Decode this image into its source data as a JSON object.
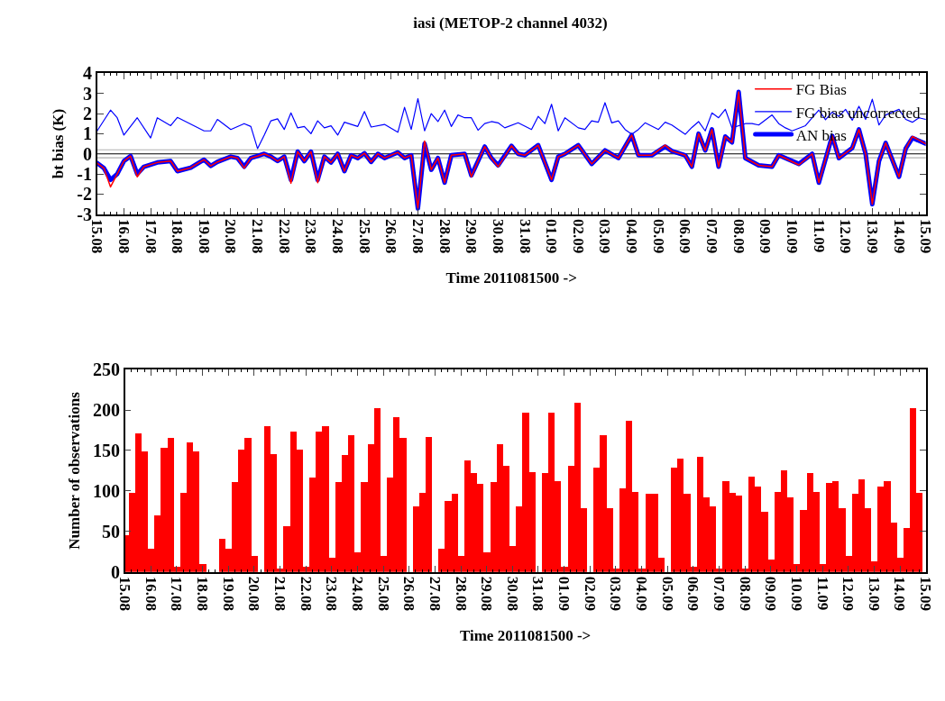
{
  "chart_data": [
    {
      "type": "line",
      "title": "iasi (METOP-2 channel 4032)",
      "xlabel": "Time 2011081500 ->",
      "ylabel": "bt bias (K)",
      "xlim": [
        "2011-08-15T00:00",
        "2011-09-15T00:00"
      ],
      "ylim": [
        -3,
        4
      ],
      "yticks": [
        -3,
        -2,
        -1,
        0,
        1,
        2,
        3,
        4
      ],
      "xticks": [
        {
          "value": "2011-08-15",
          "label": "15.08"
        },
        {
          "value": "2011-08-16",
          "label": "16.08"
        },
        {
          "value": "2011-08-17",
          "label": "17.08"
        },
        {
          "value": "2011-08-18",
          "label": "18.08"
        },
        {
          "value": "2011-08-19",
          "label": "19.08"
        },
        {
          "value": "2011-08-20",
          "label": "20.08"
        },
        {
          "value": "2011-08-21",
          "label": "21.08"
        },
        {
          "value": "2011-08-22",
          "label": "22.08"
        },
        {
          "value": "2011-08-23",
          "label": "23.08"
        },
        {
          "value": "2011-08-24",
          "label": "24.08"
        },
        {
          "value": "2011-08-25",
          "label": "25.08"
        },
        {
          "value": "2011-08-26",
          "label": "26.08"
        },
        {
          "value": "2011-08-27",
          "label": "27.08"
        },
        {
          "value": "2011-08-28",
          "label": "28.08"
        },
        {
          "value": "2011-08-29",
          "label": "29.08"
        },
        {
          "value": "2011-08-30",
          "label": "30.08"
        },
        {
          "value": "2011-08-31",
          "label": "31.08"
        },
        {
          "value": "2011-09-01",
          "label": "01.09"
        },
        {
          "value": "2011-09-02",
          "label": "02.09"
        },
        {
          "value": "2011-09-03",
          "label": "03.09"
        },
        {
          "value": "2011-09-04",
          "label": "04.09"
        },
        {
          "value": "2011-09-05",
          "label": "05.09"
        },
        {
          "value": "2011-09-06",
          "label": "06.09"
        },
        {
          "value": "2011-09-07",
          "label": "07.09"
        },
        {
          "value": "2011-09-08",
          "label": "08.09"
        },
        {
          "value": "2011-09-09",
          "label": "09.09"
        },
        {
          "value": "2011-09-10",
          "label": "10.09"
        },
        {
          "value": "2011-09-11",
          "label": "11.09"
        },
        {
          "value": "2011-09-12",
          "label": "12.09"
        },
        {
          "value": "2011-09-13",
          "label": "13.09"
        },
        {
          "value": "2011-09-14",
          "label": "14.09"
        },
        {
          "value": "2011-09-15",
          "label": "15.09"
        }
      ],
      "legend": "top right",
      "ref_lines": [
        {
          "axis": "y",
          "value": 0.2,
          "color": "#b0b0b0"
        },
        {
          "axis": "y",
          "value": -0.2,
          "color": "#b0b0b0"
        },
        {
          "axis": "y",
          "value": 0,
          "color": "#000000"
        }
      ],
      "series": [
        {
          "name": "FG Bias",
          "color": "#ff0000",
          "x": [
            "2011-08-15T00:00",
            "2011-08-15T06:00",
            "2011-08-15T12:00",
            "2011-08-15T18:00",
            "2011-08-16T00:00",
            "2011-08-16T06:00",
            "2011-08-16T12:00",
            "2011-08-16T18:00",
            "2011-08-17T06:00",
            "2011-08-17T18:00",
            "2011-08-18T00:00",
            "2011-08-18T12:00",
            "2011-08-19T00:00",
            "2011-08-19T06:00",
            "2011-08-19T12:00",
            "2011-08-20T00:00",
            "2011-08-20T06:00",
            "2011-08-20T12:00",
            "2011-08-20T18:00",
            "2011-08-21T00:00",
            "2011-08-21T06:00",
            "2011-08-21T12:00",
            "2011-08-21T18:00",
            "2011-08-22T00:00",
            "2011-08-22T06:00",
            "2011-08-22T12:00",
            "2011-08-22T18:00",
            "2011-08-23T00:00",
            "2011-08-23T06:00",
            "2011-08-23T12:00",
            "2011-08-23T18:00",
            "2011-08-24T00:00",
            "2011-08-24T06:00",
            "2011-08-24T12:00",
            "2011-08-24T18:00",
            "2011-08-25T00:00",
            "2011-08-25T06:00",
            "2011-08-25T12:00",
            "2011-08-25T18:00",
            "2011-08-26T00:00",
            "2011-08-26T06:00",
            "2011-08-26T12:00",
            "2011-08-26T18:00",
            "2011-08-27T00:00",
            "2011-08-27T06:00",
            "2011-08-27T12:00",
            "2011-08-27T18:00",
            "2011-08-28T00:00",
            "2011-08-28T06:00",
            "2011-08-28T12:00",
            "2011-08-28T18:00",
            "2011-08-29T00:00",
            "2011-08-29T06:00",
            "2011-08-29T12:00",
            "2011-08-29T18:00",
            "2011-08-30T00:00",
            "2011-08-30T12:00",
            "2011-08-30T18:00",
            "2011-08-31T00:00",
            "2011-08-31T12:00",
            "2011-09-01T00:00",
            "2011-09-01T06:00",
            "2011-09-01T12:00",
            "2011-09-02T00:00",
            "2011-09-02T12:00",
            "2011-09-03T00:00",
            "2011-09-03T12:00",
            "2011-09-04T00:00",
            "2011-09-04T06:00",
            "2011-09-04T18:00",
            "2011-09-05T06:00",
            "2011-09-05T12:00",
            "2011-09-06T00:00",
            "2011-09-06T06:00",
            "2011-09-06T12:00",
            "2011-09-06T18:00",
            "2011-09-07T00:00",
            "2011-09-07T06:00",
            "2011-09-07T12:00",
            "2011-09-07T18:00",
            "2011-09-08T00:00",
            "2011-09-08T06:00",
            "2011-09-08T18:00",
            "2011-09-09T06:00",
            "2011-09-09T12:00",
            "2011-09-10T06:00",
            "2011-09-10T18:00",
            "2011-09-11T00:00",
            "2011-09-11T12:00",
            "2011-09-11T18:00",
            "2011-09-12T06:00",
            "2011-09-12T12:00",
            "2011-09-12T18:00",
            "2011-09-13T00:00",
            "2011-09-13T06:00",
            "2011-09-13T12:00",
            "2011-09-14T00:00",
            "2011-09-14T06:00",
            "2011-09-14T12:00",
            "2011-09-15T00:00"
          ],
          "values": [
            -0.46,
            -0.71,
            -1.64,
            -1.0,
            -0.36,
            -0.11,
            -1.14,
            -0.64,
            -0.43,
            -0.36,
            -0.86,
            -0.69,
            -0.29,
            -0.6,
            -0.4,
            -0.14,
            -0.21,
            -0.71,
            -0.21,
            -0.11,
            0.0,
            -0.14,
            -0.36,
            -0.14,
            -1.46,
            0.11,
            -0.36,
            0.11,
            -1.43,
            -0.14,
            -0.43,
            0.0,
            -0.86,
            -0.07,
            -0.21,
            0.03,
            -0.4,
            0.0,
            -0.21,
            -0.07,
            0.07,
            -0.21,
            -0.07,
            -2.71,
            0.64,
            -0.79,
            -0.21,
            -1.43,
            -0.07,
            -0.03,
            0.0,
            -1.14,
            -0.36,
            0.36,
            -0.21,
            -0.64,
            0.4,
            0.0,
            -0.07,
            0.43,
            -1.29,
            -0.14,
            0.0,
            0.43,
            -0.5,
            0.17,
            -0.21,
            0.93,
            -0.07,
            -0.07,
            0.43,
            0.14,
            -0.07,
            -0.64,
            1.0,
            0.17,
            1.21,
            -0.64,
            0.86,
            0.57,
            3.07,
            -0.21,
            -0.57,
            -0.64,
            -0.07,
            -0.55,
            0.0,
            -1.43,
            0.89,
            -0.21,
            0.29,
            1.21,
            0.0,
            -2.5,
            -0.36,
            0.54,
            -1.14,
            0.26,
            0.86,
            0.5
          ]
        },
        {
          "name": "FG bias uncorrected",
          "color": "#0000ff",
          "x": [
            "2011-08-15T00:00",
            "2011-08-15T12:00",
            "2011-08-15T18:00",
            "2011-08-16T00:00",
            "2011-08-16T12:00",
            "2011-08-17T00:00",
            "2011-08-17T06:00",
            "2011-08-17T18:00",
            "2011-08-18T00:00",
            "2011-08-19T00:00",
            "2011-08-19T06:00",
            "2011-08-19T12:00",
            "2011-08-20T00:00",
            "2011-08-20T12:00",
            "2011-08-20T18:00",
            "2011-08-21T00:00",
            "2011-08-21T06:00",
            "2011-08-21T12:00",
            "2011-08-21T18:00",
            "2011-08-22T00:00",
            "2011-08-22T06:00",
            "2011-08-22T12:00",
            "2011-08-22T18:00",
            "2011-08-23T00:00",
            "2011-08-23T06:00",
            "2011-08-23T12:00",
            "2011-08-23T18:00",
            "2011-08-24T00:00",
            "2011-08-24T06:00",
            "2011-08-24T18:00",
            "2011-08-25T00:00",
            "2011-08-25T06:00",
            "2011-08-25T18:00",
            "2011-08-26T06:00",
            "2011-08-26T12:00",
            "2011-08-26T18:00",
            "2011-08-27T00:00",
            "2011-08-27T06:00",
            "2011-08-27T12:00",
            "2011-08-27T18:00",
            "2011-08-28T00:00",
            "2011-08-28T06:00",
            "2011-08-28T12:00",
            "2011-08-28T18:00",
            "2011-08-29T00:00",
            "2011-08-29T06:00",
            "2011-08-29T12:00",
            "2011-08-29T18:00",
            "2011-08-30T00:00",
            "2011-08-30T06:00",
            "2011-08-30T18:00",
            "2011-08-31T06:00",
            "2011-08-31T12:00",
            "2011-08-31T18:00",
            "2011-09-01T00:00",
            "2011-09-01T06:00",
            "2011-09-01T12:00",
            "2011-09-02T00:00",
            "2011-09-02T06:00",
            "2011-09-02T12:00",
            "2011-09-02T18:00",
            "2011-09-03T00:00",
            "2011-09-03T06:00",
            "2011-09-03T12:00",
            "2011-09-03T18:00",
            "2011-09-04T00:00",
            "2011-09-04T06:00",
            "2011-09-04T12:00",
            "2011-09-05T00:00",
            "2011-09-05T06:00",
            "2011-09-05T12:00",
            "2011-09-06T00:00",
            "2011-09-06T06:00",
            "2011-09-06T12:00",
            "2011-09-06T18:00",
            "2011-09-07T00:00",
            "2011-09-07T06:00",
            "2011-09-07T12:00",
            "2011-09-07T18:00",
            "2011-09-08T06:00",
            "2011-09-08T12:00",
            "2011-09-08T18:00",
            "2011-09-09T06:00",
            "2011-09-09T12:00",
            "2011-09-09T18:00",
            "2011-09-10T00:00",
            "2011-09-10T12:00",
            "2011-09-11T00:00",
            "2011-09-11T06:00",
            "2011-09-11T12:00",
            "2011-09-11T18:00",
            "2011-09-12T00:00",
            "2011-09-12T06:00",
            "2011-09-12T12:00",
            "2011-09-12T18:00",
            "2011-09-13T00:00",
            "2011-09-13T06:00",
            "2011-09-13T12:00",
            "2011-09-14T00:00",
            "2011-09-14T06:00",
            "2011-09-14T12:00",
            "2011-09-14T18:00",
            "2011-09-15T00:00"
          ],
          "values": [
            1.14,
            2.17,
            1.79,
            0.93,
            1.79,
            0.79,
            1.79,
            1.4,
            1.81,
            1.14,
            1.14,
            1.71,
            1.21,
            1.5,
            1.36,
            0.26,
            0.93,
            1.64,
            1.74,
            1.21,
            2.03,
            1.29,
            1.36,
            1.0,
            1.64,
            1.29,
            1.39,
            0.93,
            1.57,
            1.36,
            2.1,
            1.33,
            1.46,
            1.07,
            2.31,
            1.21,
            2.74,
            1.14,
            2.0,
            1.6,
            2.17,
            1.36,
            1.93,
            1.79,
            1.79,
            1.17,
            1.5,
            1.6,
            1.54,
            1.29,
            1.54,
            1.21,
            1.86,
            1.5,
            2.46,
            1.14,
            1.79,
            1.29,
            1.21,
            1.64,
            1.57,
            2.54,
            1.54,
            1.64,
            1.21,
            0.97,
            1.21,
            1.54,
            1.21,
            1.57,
            1.43,
            0.97,
            1.31,
            1.6,
            1.14,
            2.03,
            1.79,
            2.21,
            1.29,
            1.5,
            1.5,
            1.43,
            1.93,
            1.5,
            1.29,
            1.14,
            1.4,
            2.17,
            1.69,
            2.07,
            1.86,
            2.21,
            1.67,
            2.36,
            1.71,
            2.71,
            1.43,
            1.93,
            2.21,
            1.71,
            1.57,
            1.79,
            1.71
          ]
        },
        {
          "name": "AN bias",
          "color": "#0000ff",
          "x": [
            "2011-08-15T00:00",
            "2011-08-15T06:00",
            "2011-08-15T12:00",
            "2011-08-15T18:00",
            "2011-08-16T00:00",
            "2011-08-16T06:00",
            "2011-08-16T12:00",
            "2011-08-16T18:00",
            "2011-08-17T06:00",
            "2011-08-17T18:00",
            "2011-08-18T00:00",
            "2011-08-18T12:00",
            "2011-08-19T00:00",
            "2011-08-19T06:00",
            "2011-08-19T12:00",
            "2011-08-20T00:00",
            "2011-08-20T06:00",
            "2011-08-20T12:00",
            "2011-08-20T18:00",
            "2011-08-21T00:00",
            "2011-08-21T06:00",
            "2011-08-21T12:00",
            "2011-08-21T18:00",
            "2011-08-22T00:00",
            "2011-08-22T06:00",
            "2011-08-22T12:00",
            "2011-08-22T18:00",
            "2011-08-23T00:00",
            "2011-08-23T06:00",
            "2011-08-23T12:00",
            "2011-08-23T18:00",
            "2011-08-24T00:00",
            "2011-08-24T06:00",
            "2011-08-24T12:00",
            "2011-08-24T18:00",
            "2011-08-25T00:00",
            "2011-08-25T06:00",
            "2011-08-25T12:00",
            "2011-08-25T18:00",
            "2011-08-26T00:00",
            "2011-08-26T06:00",
            "2011-08-26T12:00",
            "2011-08-26T18:00",
            "2011-08-27T00:00",
            "2011-08-27T06:00",
            "2011-08-27T12:00",
            "2011-08-27T18:00",
            "2011-08-28T00:00",
            "2011-08-28T06:00",
            "2011-08-28T12:00",
            "2011-08-28T18:00",
            "2011-08-29T00:00",
            "2011-08-29T06:00",
            "2011-08-29T12:00",
            "2011-08-29T18:00",
            "2011-08-30T00:00",
            "2011-08-30T12:00",
            "2011-08-30T18:00",
            "2011-08-31T00:00",
            "2011-08-31T12:00",
            "2011-09-01T00:00",
            "2011-09-01T06:00",
            "2011-09-01T12:00",
            "2011-09-02T00:00",
            "2011-09-02T12:00",
            "2011-09-03T00:00",
            "2011-09-03T12:00",
            "2011-09-04T00:00",
            "2011-09-04T06:00",
            "2011-09-04T18:00",
            "2011-09-05T06:00",
            "2011-09-05T12:00",
            "2011-09-06T00:00",
            "2011-09-06T06:00",
            "2011-09-06T12:00",
            "2011-09-06T18:00",
            "2011-09-07T00:00",
            "2011-09-07T06:00",
            "2011-09-07T12:00",
            "2011-09-07T18:00",
            "2011-09-08T00:00",
            "2011-09-08T06:00",
            "2011-09-08T18:00",
            "2011-09-09T06:00",
            "2011-09-09T12:00",
            "2011-09-10T06:00",
            "2011-09-10T18:00",
            "2011-09-11T00:00",
            "2011-09-11T12:00",
            "2011-09-11T18:00",
            "2011-09-12T06:00",
            "2011-09-12T12:00",
            "2011-09-12T18:00",
            "2011-09-13T00:00",
            "2011-09-13T06:00",
            "2011-09-13T12:00",
            "2011-09-14T00:00",
            "2011-09-14T06:00",
            "2011-09-14T12:00",
            "2011-09-15T00:00"
          ],
          "values": [
            -0.46,
            -0.71,
            -1.29,
            -1.0,
            -0.36,
            -0.11,
            -1.0,
            -0.64,
            -0.43,
            -0.36,
            -0.86,
            -0.69,
            -0.29,
            -0.6,
            -0.4,
            -0.14,
            -0.21,
            -0.64,
            -0.21,
            -0.11,
            0.0,
            -0.14,
            -0.36,
            -0.14,
            -1.29,
            0.11,
            -0.36,
            0.11,
            -1.29,
            -0.14,
            -0.43,
            0.0,
            -0.86,
            -0.07,
            -0.21,
            0.03,
            -0.4,
            0.0,
            -0.21,
            -0.07,
            0.07,
            -0.21,
            -0.07,
            -2.71,
            0.5,
            -0.79,
            -0.21,
            -1.43,
            -0.07,
            -0.03,
            0.0,
            -1.07,
            -0.36,
            0.36,
            -0.21,
            -0.57,
            0.4,
            0.0,
            -0.07,
            0.43,
            -1.29,
            -0.14,
            0.0,
            0.43,
            -0.5,
            0.17,
            -0.21,
            0.93,
            -0.07,
            -0.07,
            0.36,
            0.14,
            -0.07,
            -0.64,
            1.0,
            0.17,
            1.21,
            -0.64,
            0.86,
            0.57,
            3.07,
            -0.21,
            -0.57,
            -0.64,
            -0.07,
            -0.5,
            0.0,
            -1.43,
            0.89,
            -0.21,
            0.29,
            1.21,
            0.0,
            -2.5,
            -0.36,
            0.54,
            -1.14,
            0.26,
            0.79,
            0.5
          ]
        }
      ]
    },
    {
      "type": "bar",
      "xlabel": "Time 2011081500 ->",
      "ylabel": "Number of observations",
      "color": "#ff0000",
      "xlim": [
        "2011-08-15T00:00",
        "2011-09-15T00:00"
      ],
      "ylim": [
        0,
        250
      ],
      "yticks": [
        0,
        50,
        100,
        150,
        200,
        250
      ],
      "xticks": [
        {
          "value": "2011-08-15",
          "label": "15.08"
        },
        {
          "value": "2011-08-16",
          "label": "16.08"
        },
        {
          "value": "2011-08-17",
          "label": "17.08"
        },
        {
          "value": "2011-08-18",
          "label": "18.08"
        },
        {
          "value": "2011-08-19",
          "label": "19.08"
        },
        {
          "value": "2011-08-20",
          "label": "20.08"
        },
        {
          "value": "2011-08-21",
          "label": "21.08"
        },
        {
          "value": "2011-08-22",
          "label": "22.08"
        },
        {
          "value": "2011-08-23",
          "label": "23.08"
        },
        {
          "value": "2011-08-24",
          "label": "24.08"
        },
        {
          "value": "2011-08-25",
          "label": "25.08"
        },
        {
          "value": "2011-08-26",
          "label": "26.08"
        },
        {
          "value": "2011-08-27",
          "label": "27.08"
        },
        {
          "value": "2011-08-28",
          "label": "28.08"
        },
        {
          "value": "2011-08-29",
          "label": "29.08"
        },
        {
          "value": "2011-08-30",
          "label": "30.08"
        },
        {
          "value": "2011-08-31",
          "label": "31.08"
        },
        {
          "value": "2011-09-01",
          "label": "01.09"
        },
        {
          "value": "2011-09-02",
          "label": "02.09"
        },
        {
          "value": "2011-09-03",
          "label": "03.09"
        },
        {
          "value": "2011-09-04",
          "label": "04.09"
        },
        {
          "value": "2011-09-05",
          "label": "05.09"
        },
        {
          "value": "2011-09-06",
          "label": "06.09"
        },
        {
          "value": "2011-09-07",
          "label": "07.09"
        },
        {
          "value": "2011-09-08",
          "label": "08.09"
        },
        {
          "value": "2011-09-09",
          "label": "09.09"
        },
        {
          "value": "2011-09-10",
          "label": "10.09"
        },
        {
          "value": "2011-09-11",
          "label": "11.09"
        },
        {
          "value": "2011-09-12",
          "label": "12.09"
        },
        {
          "value": "2011-09-13",
          "label": "13.09"
        },
        {
          "value": "2011-09-14",
          "label": "14.09"
        },
        {
          "value": "2011-09-15",
          "label": "15.09"
        }
      ],
      "x": [
        "2011-08-15T00:00",
        "2011-08-15T06:00",
        "2011-08-15T12:00",
        "2011-08-15T18:00",
        "2011-08-16T00:00",
        "2011-08-16T06:00",
        "2011-08-16T12:00",
        "2011-08-16T18:00",
        "2011-08-17T00:00",
        "2011-08-17T06:00",
        "2011-08-17T12:00",
        "2011-08-17T18:00",
        "2011-08-18T00:00",
        "2011-08-18T06:00",
        "2011-08-18T12:00",
        "2011-08-18T18:00",
        "2011-08-19T00:00",
        "2011-08-19T06:00",
        "2011-08-19T12:00",
        "2011-08-19T18:00",
        "2011-08-20T00:00",
        "2011-08-20T06:00",
        "2011-08-20T12:00",
        "2011-08-20T18:00",
        "2011-08-21T00:00",
        "2011-08-21T06:00",
        "2011-08-21T12:00",
        "2011-08-21T18:00",
        "2011-08-22T00:00",
        "2011-08-22T06:00",
        "2011-08-22T12:00",
        "2011-08-22T18:00",
        "2011-08-23T00:00",
        "2011-08-23T06:00",
        "2011-08-23T12:00",
        "2011-08-23T18:00",
        "2011-08-24T00:00",
        "2011-08-24T06:00",
        "2011-08-24T12:00",
        "2011-08-24T18:00",
        "2011-08-25T00:00",
        "2011-08-25T06:00",
        "2011-08-25T12:00",
        "2011-08-25T18:00",
        "2011-08-26T00:00",
        "2011-08-26T06:00",
        "2011-08-26T12:00",
        "2011-08-26T18:00",
        "2011-08-27T00:00",
        "2011-08-27T06:00",
        "2011-08-27T12:00",
        "2011-08-27T18:00",
        "2011-08-28T00:00",
        "2011-08-28T06:00",
        "2011-08-28T12:00",
        "2011-08-28T18:00",
        "2011-08-29T00:00",
        "2011-08-29T06:00",
        "2011-08-29T12:00",
        "2011-08-29T18:00",
        "2011-08-30T00:00",
        "2011-08-30T06:00",
        "2011-08-30T12:00",
        "2011-08-30T18:00",
        "2011-08-31T00:00",
        "2011-08-31T06:00",
        "2011-08-31T12:00",
        "2011-08-31T18:00",
        "2011-09-01T00:00",
        "2011-09-01T06:00",
        "2011-09-01T12:00",
        "2011-09-01T18:00",
        "2011-09-02T00:00",
        "2011-09-02T06:00",
        "2011-09-02T12:00",
        "2011-09-02T18:00",
        "2011-09-03T00:00",
        "2011-09-03T06:00",
        "2011-09-03T12:00",
        "2011-09-03T18:00",
        "2011-09-04T00:00",
        "2011-09-04T06:00",
        "2011-09-04T12:00",
        "2011-09-04T18:00",
        "2011-09-05T00:00",
        "2011-09-05T06:00",
        "2011-09-05T12:00",
        "2011-09-05T18:00",
        "2011-09-06T00:00",
        "2011-09-06T06:00",
        "2011-09-06T12:00",
        "2011-09-06T18:00",
        "2011-09-07T00:00",
        "2011-09-07T06:00",
        "2011-09-07T12:00",
        "2011-09-07T18:00",
        "2011-09-08T00:00",
        "2011-09-08T06:00",
        "2011-09-08T12:00",
        "2011-09-08T18:00",
        "2011-09-09T00:00",
        "2011-09-09T06:00",
        "2011-09-09T12:00",
        "2011-09-09T18:00",
        "2011-09-10T00:00",
        "2011-09-10T06:00",
        "2011-09-10T12:00",
        "2011-09-10T18:00",
        "2011-09-11T00:00",
        "2011-09-11T06:00",
        "2011-09-11T12:00",
        "2011-09-11T18:00",
        "2011-09-12T00:00",
        "2011-09-12T06:00",
        "2011-09-12T12:00",
        "2011-09-12T18:00",
        "2011-09-13T00:00",
        "2011-09-13T06:00",
        "2011-09-13T12:00",
        "2011-09-13T18:00",
        "2011-09-14T00:00",
        "2011-09-14T06:00",
        "2011-09-14T12:00",
        "2011-09-14T18:00"
      ],
      "values": [
        45,
        98,
        171,
        149,
        28,
        70,
        153,
        165,
        6,
        98,
        160,
        149,
        10,
        0,
        0,
        41,
        28,
        111,
        151,
        165,
        19,
        0,
        180,
        145,
        4,
        56,
        173,
        151,
        6,
        116,
        173,
        180,
        17,
        111,
        144,
        169,
        24,
        111,
        158,
        202,
        19,
        116,
        191,
        165,
        0,
        81,
        98,
        167,
        0,
        28,
        87,
        96,
        19,
        138,
        122,
        109,
        24,
        111,
        158,
        131,
        32,
        81,
        197,
        123,
        0,
        122,
        197,
        112,
        6,
        131,
        209,
        78,
        0,
        129,
        169,
        78,
        4,
        103,
        186,
        99,
        4,
        96,
        96,
        17,
        0,
        129,
        140,
        96,
        6,
        142,
        92,
        81,
        4,
        112,
        97,
        94,
        4,
        118,
        105,
        74,
        15,
        99,
        125,
        92,
        10,
        76,
        122,
        99,
        10,
        110,
        112,
        78,
        19,
        96,
        114,
        78,
        13,
        105,
        112,
        61,
        17,
        54,
        202,
        97
      ]
    }
  ]
}
